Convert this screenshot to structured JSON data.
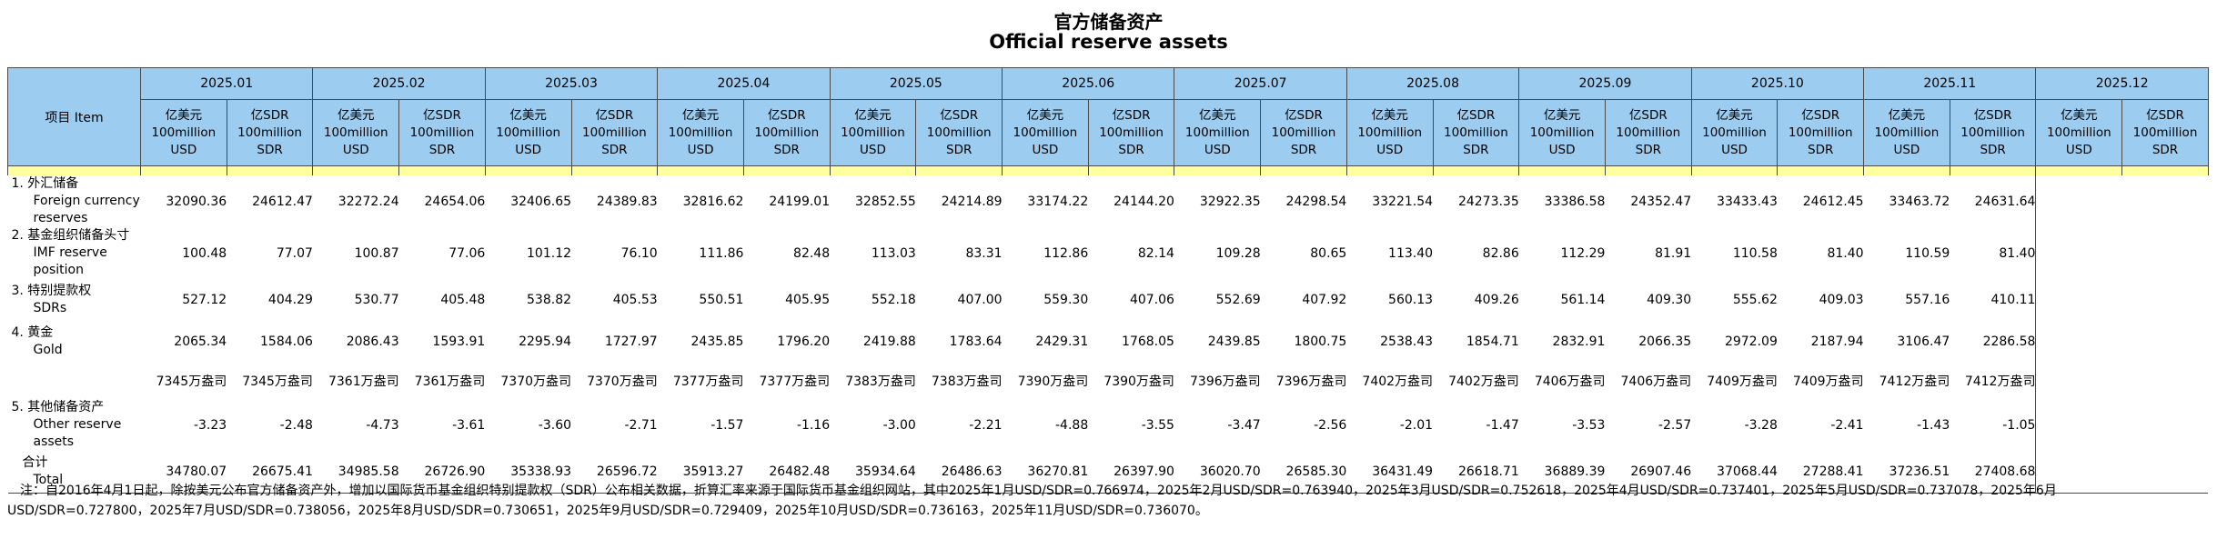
{
  "title_cn": "官方储备资产",
  "title_en": "Official reserve assets",
  "item_header": "项目 Item",
  "unit_usd": [
    "亿美元",
    "100million",
    "USD"
  ],
  "unit_sdr": [
    "亿SDR",
    "100million",
    "SDR"
  ],
  "months": [
    "2025.01",
    "2025.02",
    "2025.03",
    "2025.04",
    "2025.05",
    "2025.06",
    "2025.07",
    "2025.08",
    "2025.09",
    "2025.10",
    "2025.11",
    "2025.12"
  ],
  "rows": [
    {
      "label_cn": "1. 外汇储备",
      "label_en": "Foreign currency reserves",
      "values": [
        "32090.36",
        "24612.47",
        "32272.24",
        "24654.06",
        "32406.65",
        "24389.83",
        "32816.62",
        "24199.01",
        "32852.55",
        "24214.89",
        "33174.22",
        "24144.20",
        "32922.35",
        "24298.54",
        "33221.54",
        "24273.35",
        "33386.58",
        "24352.47",
        "33433.43",
        "24612.45",
        "33463.72",
        "24631.64",
        "",
        ""
      ]
    },
    {
      "label_cn": "2. 基金组织储备头寸",
      "label_en": "IMF reserve position",
      "values": [
        "100.48",
        "77.07",
        "100.87",
        "77.06",
        "101.12",
        "76.10",
        "111.86",
        "82.48",
        "113.03",
        "83.31",
        "112.86",
        "82.14",
        "109.28",
        "80.65",
        "113.40",
        "82.86",
        "112.29",
        "81.91",
        "110.58",
        "81.40",
        "110.59",
        "81.40",
        "",
        ""
      ]
    },
    {
      "label_cn": "3. 特别提款权",
      "label_en": "SDRs",
      "values": [
        "527.12",
        "404.29",
        "530.77",
        "405.48",
        "538.82",
        "405.53",
        "550.51",
        "405.95",
        "552.18",
        "407.00",
        "559.30",
        "407.06",
        "552.69",
        "407.92",
        "560.13",
        "409.26",
        "561.14",
        "409.30",
        "555.62",
        "409.03",
        "557.16",
        "410.11",
        "",
        ""
      ]
    },
    {
      "label_cn": "4. 黄金",
      "label_en": "Gold",
      "values": [
        "2065.34",
        "1584.06",
        "2086.43",
        "1593.91",
        "2295.94",
        "1727.97",
        "2435.85",
        "1796.20",
        "2419.88",
        "1783.64",
        "2429.31",
        "1768.05",
        "2439.85",
        "1800.75",
        "2538.43",
        "1854.71",
        "2832.91",
        "2066.35",
        "2972.09",
        "2187.94",
        "3106.47",
        "2286.58",
        "",
        ""
      ]
    },
    {
      "label_cn": "",
      "label_en": "",
      "values": [
        "7345万盎司",
        "7345万盎司",
        "7361万盎司",
        "7361万盎司",
        "7370万盎司",
        "7370万盎司",
        "7377万盎司",
        "7377万盎司",
        "7383万盎司",
        "7383万盎司",
        "7390万盎司",
        "7390万盎司",
        "7396万盎司",
        "7396万盎司",
        "7402万盎司",
        "7402万盎司",
        "7406万盎司",
        "7406万盎司",
        "7409万盎司",
        "7409万盎司",
        "7412万盎司",
        "7412万盎司",
        "",
        ""
      ]
    },
    {
      "label_cn": "5. 其他储备资产",
      "label_en": "Other reserve assets",
      "values": [
        "-3.23",
        "-2.48",
        "-4.73",
        "-3.61",
        "-3.60",
        "-2.71",
        "-1.57",
        "-1.16",
        "-3.00",
        "-2.21",
        "-4.88",
        "-3.55",
        "-3.47",
        "-2.56",
        "-2.01",
        "-1.47",
        "-3.53",
        "-2.57",
        "-3.28",
        "-2.41",
        "-1.43",
        "-1.05",
        "",
        ""
      ]
    },
    {
      "label_cn": "合计",
      "label_en": "Total",
      "values": [
        "34780.07",
        "26675.41",
        "34985.58",
        "26726.90",
        "35338.93",
        "26596.72",
        "35913.27",
        "26482.48",
        "35934.64",
        "26486.63",
        "36270.81",
        "26397.90",
        "36020.70",
        "26585.30",
        "36431.49",
        "26618.71",
        "36889.39",
        "26907.46",
        "37068.44",
        "27288.41",
        "37236.51",
        "27408.68",
        "",
        ""
      ]
    }
  ],
  "note_line1": "注：自2016年4月1日起，除按美元公布官方储备资产外，增加以国际货币基金组织特别提款权（SDR）公布相关数据，折算汇率来源于国际货币基金组织网站，其中2025年1月USD/SDR=0.766974，2025年2月USD/SDR=0.763940，2025年3月USD/SDR=0.752618，2025年4月USD/SDR=0.737401，2025年5月USD/SDR=0.737078，2025年6月",
  "note_line2": "USD/SDR=0.727800，2025年7月USD/SDR=0.738056，2025年8月USD/SDR=0.730651，2025年9月USD/SDR=0.729409，2025年10月USD/SDR=0.736163，2025年11月USD/SDR=0.736070。"
}
